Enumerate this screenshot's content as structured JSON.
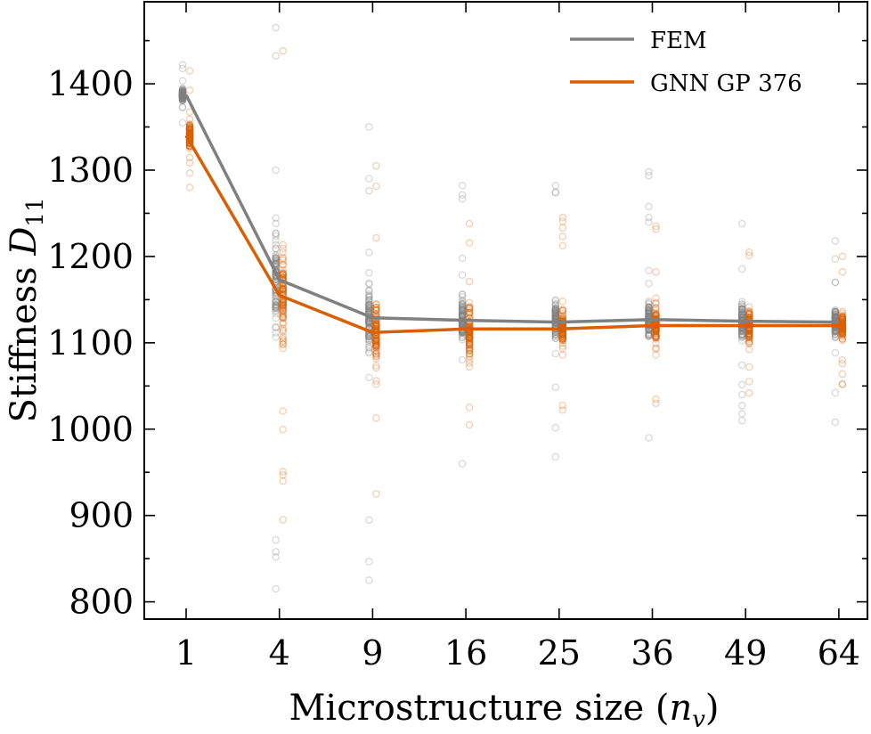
{
  "chart_data": {
    "type": "scatter",
    "xlabel": "Microstructure size",
    "xlabel_symbol": "n",
    "xlabel_sub": "v",
    "ylabel": "Stiffness",
    "ylabel_symbol": "D",
    "ylabel_sub": "11",
    "categories": [
      "1",
      "4",
      "9",
      "16",
      "25",
      "36",
      "49",
      "64"
    ],
    "ylim": [
      780,
      1495
    ],
    "yticks": [
      800,
      900,
      1000,
      1100,
      1200,
      1300,
      1400
    ],
    "legend_position": "top-right",
    "grid": false,
    "series": [
      {
        "name": "FEM",
        "color": "#808080",
        "means": [
          1387,
          1173,
          1129,
          1126,
          1124,
          1127,
          1125,
          1124
        ],
        "scatter_min": [
          1355,
          815,
          825,
          960,
          968,
          990,
          1010,
          1008
        ],
        "scatter_max": [
          1422,
          1465,
          1350,
          1282,
          1282,
          1298,
          1238,
          1218
        ],
        "dense_min": [
          1360,
          940,
          980,
          1030,
          1040,
          1040,
          1050,
          1060
        ],
        "dense_max": [
          1415,
          1380,
          1300,
          1230,
          1220,
          1210,
          1200,
          1190
        ]
      },
      {
        "name": "GNN GP 376",
        "color": "#d95f02",
        "means": [
          1340,
          1155,
          1112,
          1116,
          1116,
          1120,
          1120,
          1120
        ],
        "scatter_min": [
          1280,
          895,
          925,
          1005,
          1022,
          1030,
          1042,
          1052
        ],
        "scatter_max": [
          1415,
          1438,
          1305,
          1238,
          1245,
          1235,
          1205,
          1200
        ],
        "dense_min": [
          1285,
          960,
          960,
          1010,
          1030,
          1040,
          1045,
          1060
        ],
        "dense_max": [
          1410,
          1385,
          1260,
          1230,
          1220,
          1210,
          1200,
          1190
        ]
      }
    ]
  }
}
